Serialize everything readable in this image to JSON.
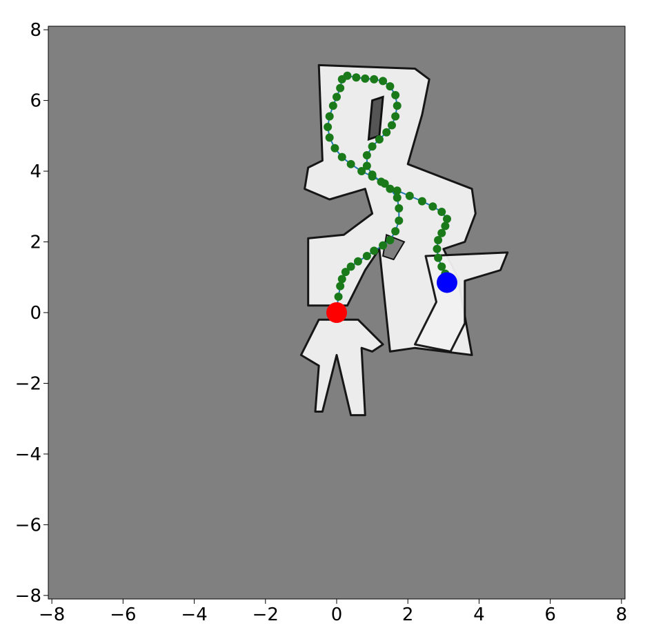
{
  "chart_data": {
    "type": "scatter",
    "title": "",
    "xlabel": "",
    "ylabel": "",
    "xlim": [
      -8.1,
      8.1
    ],
    "ylim": [
      -8.1,
      8.1
    ],
    "xticks": [
      -8,
      -6,
      -4,
      -2,
      0,
      2,
      4,
      6,
      8
    ],
    "yticks": [
      -8,
      -6,
      -4,
      -2,
      0,
      2,
      4,
      6,
      8
    ],
    "xtick_labels": [
      "−8",
      "−6",
      "−4",
      "−2",
      "0",
      "2",
      "4",
      "6",
      "8"
    ],
    "ytick_labels": [
      "−8",
      "−6",
      "−4",
      "−2",
      "0",
      "2",
      "4",
      "6",
      "8"
    ],
    "grid": false,
    "background_color": "#808080",
    "map_free_color": "#f2f2f2",
    "map_wall_color": "#111111",
    "path_line_color": "#1f77b4",
    "path_marker_color": "#1a7a1a",
    "start_color": "#ff0000",
    "goal_color": "#0000ff",
    "start": [
      0.0,
      0.0
    ],
    "goal": [
      3.1,
      0.85
    ],
    "path": [
      [
        0.0,
        0.1
      ],
      [
        0.05,
        0.45
      ],
      [
        0.1,
        0.75
      ],
      [
        0.15,
        0.95
      ],
      [
        0.25,
        1.15
      ],
      [
        0.4,
        1.3
      ],
      [
        0.6,
        1.45
      ],
      [
        0.85,
        1.6
      ],
      [
        1.05,
        1.75
      ],
      [
        1.3,
        1.9
      ],
      [
        1.5,
        2.05
      ],
      [
        1.65,
        2.3
      ],
      [
        1.75,
        2.6
      ],
      [
        1.75,
        2.95
      ],
      [
        1.7,
        3.25
      ],
      [
        1.5,
        3.5
      ],
      [
        1.25,
        3.7
      ],
      [
        1.0,
        3.9
      ],
      [
        0.85,
        4.15
      ],
      [
        0.85,
        4.45
      ],
      [
        1.0,
        4.7
      ],
      [
        1.2,
        4.9
      ],
      [
        1.4,
        5.1
      ],
      [
        1.55,
        5.3
      ],
      [
        1.65,
        5.55
      ],
      [
        1.7,
        5.85
      ],
      [
        1.65,
        6.15
      ],
      [
        1.5,
        6.4
      ],
      [
        1.3,
        6.55
      ],
      [
        1.05,
        6.6
      ],
      [
        0.8,
        6.62
      ],
      [
        0.55,
        6.65
      ],
      [
        0.3,
        6.7
      ],
      [
        0.15,
        6.6
      ],
      [
        0.1,
        6.35
      ],
      [
        0.0,
        6.1
      ],
      [
        -0.1,
        5.85
      ],
      [
        -0.2,
        5.55
      ],
      [
        -0.25,
        5.25
      ],
      [
        -0.2,
        4.95
      ],
      [
        -0.05,
        4.65
      ],
      [
        0.15,
        4.4
      ],
      [
        0.4,
        4.2
      ],
      [
        0.7,
        4.0
      ],
      [
        1.0,
        3.85
      ],
      [
        1.35,
        3.65
      ],
      [
        1.7,
        3.45
      ],
      [
        2.05,
        3.3
      ],
      [
        2.4,
        3.15
      ],
      [
        2.7,
        3.0
      ],
      [
        2.95,
        2.85
      ],
      [
        3.1,
        2.65
      ],
      [
        3.05,
        2.45
      ],
      [
        2.95,
        2.25
      ],
      [
        2.85,
        2.05
      ],
      [
        2.82,
        1.8
      ],
      [
        2.85,
        1.55
      ],
      [
        2.95,
        1.3
      ],
      [
        3.05,
        1.1
      ]
    ]
  }
}
